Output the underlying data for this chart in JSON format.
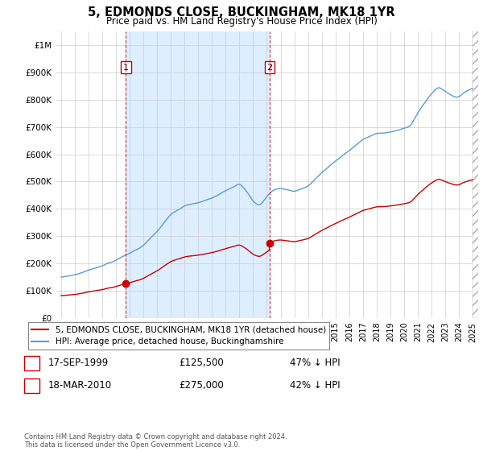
{
  "title": "5, EDMONDS CLOSE, BUCKINGHAM, MK18 1YR",
  "subtitle": "Price paid vs. HM Land Registry's House Price Index (HPI)",
  "legend_line1": "5, EDMONDS CLOSE, BUCKINGHAM, MK18 1YR (detached house)",
  "legend_line2": "HPI: Average price, detached house, Buckinghamshire",
  "transaction1_date": "17-SEP-1999",
  "transaction1_price": "£125,500",
  "transaction1_hpi": "47% ↓ HPI",
  "transaction1_x": 1999.72,
  "transaction1_y": 125500,
  "transaction2_date": "18-MAR-2010",
  "transaction2_price": "£275,000",
  "transaction2_hpi": "42% ↓ HPI",
  "transaction2_x": 2010.21,
  "transaction2_y": 275000,
  "footer": "Contains HM Land Registry data © Crown copyright and database right 2024.\nThis data is licensed under the Open Government Licence v3.0.",
  "hpi_color": "#5b9bd5",
  "sale_color": "#cc0000",
  "vline_color": "#cc0000",
  "shade_color": "#ddeeff",
  "ylim": [
    0,
    1050000
  ],
  "xlim_start": 1994.6,
  "xlim_end": 2025.4
}
